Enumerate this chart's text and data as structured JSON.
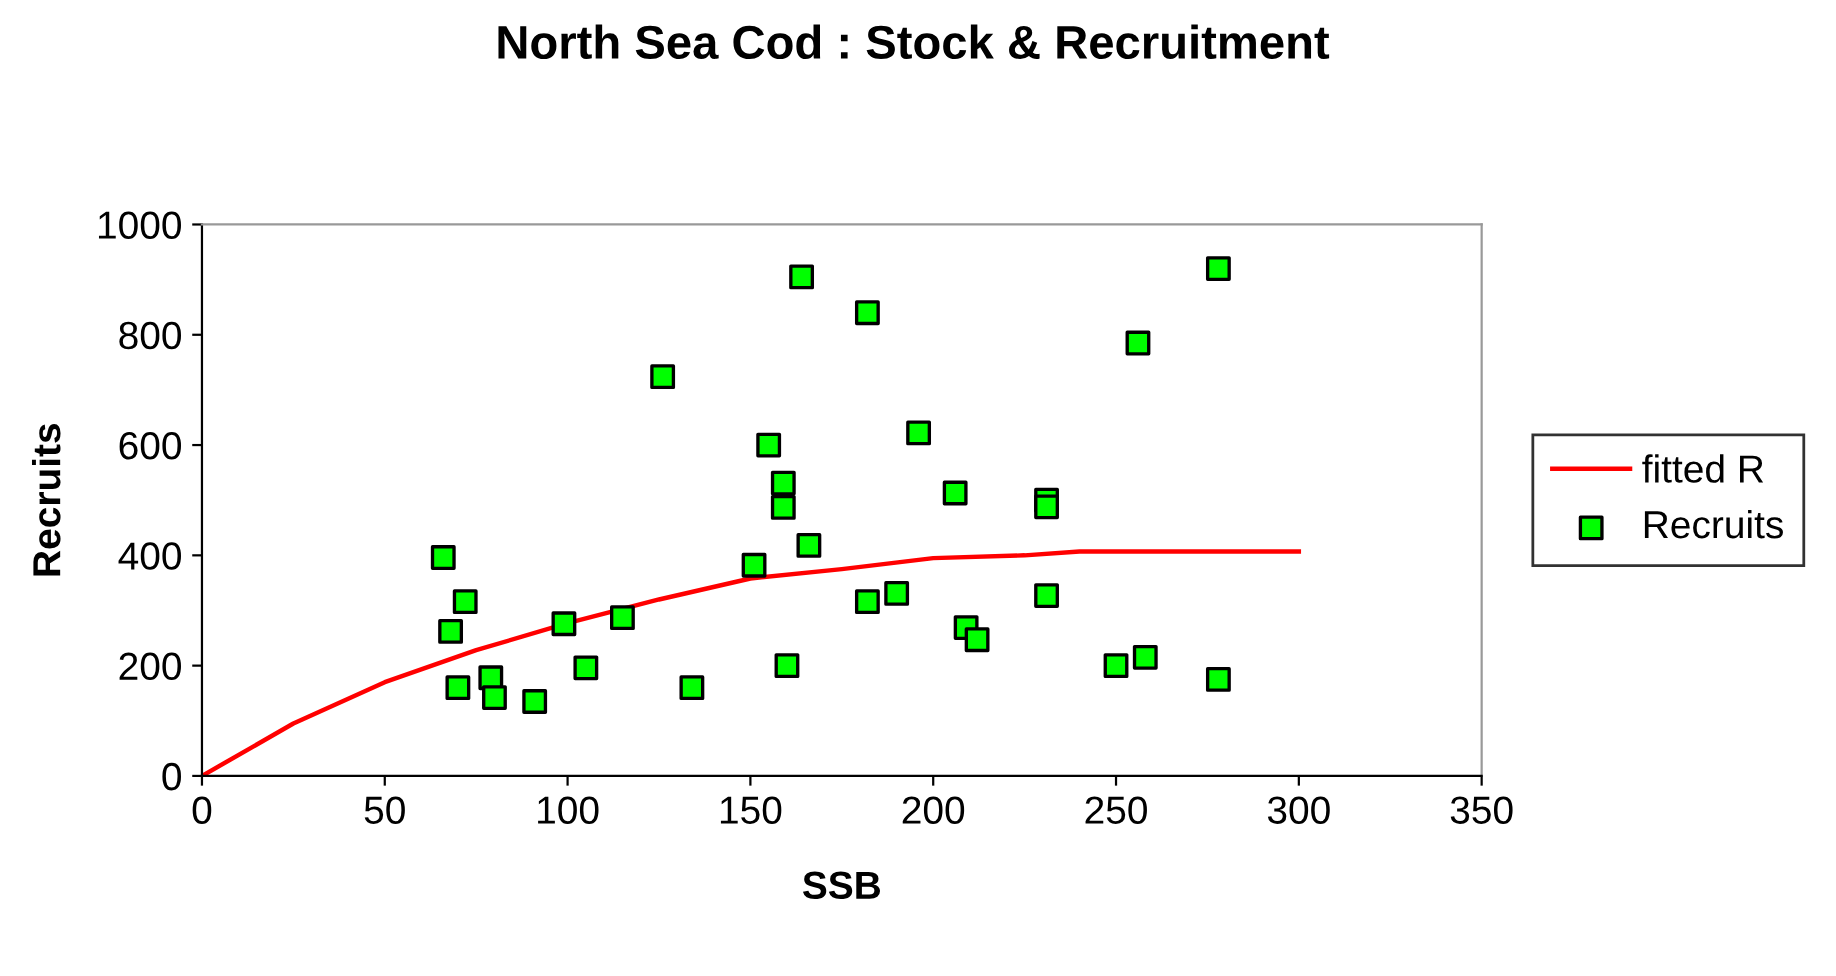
{
  "chart_data": {
    "type": "scatter",
    "title": "North Sea Cod : Stock & Recruitment",
    "xlabel": "SSB",
    "ylabel": "Recruits",
    "xlim": [
      0,
      350
    ],
    "xticks": [
      0,
      50,
      100,
      150,
      200,
      250,
      300,
      350
    ],
    "ylim": [
      0,
      1000
    ],
    "yticks": [
      0,
      200,
      400,
      600,
      800,
      1000
    ],
    "grid": false,
    "legend": "right",
    "series": [
      {
        "name": "fitted R",
        "type": "line",
        "color": "#ff0000",
        "marker": "none",
        "line_style": "solid",
        "x": [
          0,
          25,
          50,
          75,
          100,
          125,
          150,
          175,
          200,
          225,
          240,
          300
        ],
        "values": [
          0,
          95,
          170,
          228,
          277,
          320,
          358,
          375,
          395,
          400,
          407,
          407
        ]
      },
      {
        "name": "Recruits",
        "color": "#00ff00",
        "marker": "square",
        "x": [
          66,
          72,
          68,
          70,
          79,
          80,
          91,
          99,
          105,
          115,
          126,
          134,
          151,
          155,
          159,
          159,
          160,
          164,
          166,
          182,
          182,
          190,
          196,
          206,
          209,
          212,
          231,
          231,
          231,
          250,
          256,
          258,
          278,
          278
        ],
        "values": [
          396,
          316,
          262,
          160,
          178,
          142,
          135,
          276,
          196,
          287,
          724,
          160,
          382,
          600,
          531,
          487,
          200,
          905,
          418,
          840,
          316,
          331,
          622,
          513,
          269,
          247,
          500,
          488,
          327,
          200,
          785,
          215,
          920,
          175
        ]
      }
    ]
  }
}
